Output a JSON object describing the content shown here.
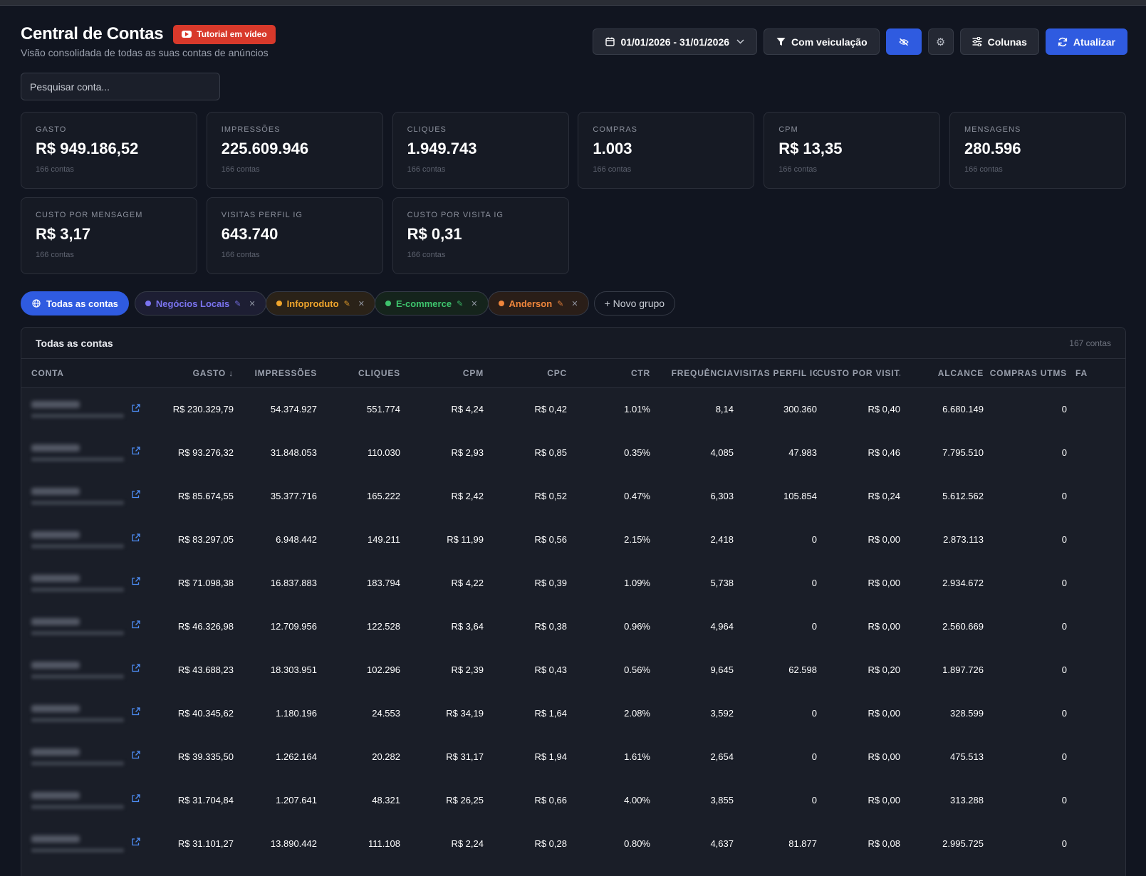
{
  "header": {
    "title": "Central de Contas",
    "tutorial_label": "Tutorial em vídeo",
    "subtitle": "Visão consolidada de todas as suas contas de anúncios"
  },
  "toolbar": {
    "date_range": "01/01/2026 - 31/01/2026",
    "filter_label": "Com veiculação",
    "columns_label": "Colunas",
    "refresh_label": "Atualizar"
  },
  "search": {
    "placeholder": "Pesquisar conta..."
  },
  "cards": [
    {
      "label": "GASTO",
      "value": "R$ 949.186,52",
      "sub": "166 contas"
    },
    {
      "label": "IMPRESSÕES",
      "value": "225.609.946",
      "sub": "166 contas"
    },
    {
      "label": "CLIQUES",
      "value": "1.949.743",
      "sub": "166 contas"
    },
    {
      "label": "COMPRAS",
      "value": "1.003",
      "sub": "166 contas"
    },
    {
      "label": "CPM",
      "value": "R$ 13,35",
      "sub": "166 contas"
    },
    {
      "label": "MENSAGENS",
      "value": "280.596",
      "sub": "166 contas"
    },
    {
      "label": "CUSTO POR MENSAGEM",
      "value": "R$ 3,17",
      "sub": "166 contas"
    },
    {
      "label": "VISITAS PERFIL IG",
      "value": "643.740",
      "sub": "166 contas"
    },
    {
      "label": "CUSTO POR VISITA IG",
      "value": "R$ 0,31",
      "sub": "166 contas"
    }
  ],
  "groups": {
    "all_label": "Todas as contas",
    "items": [
      {
        "label": "Negócios Locais",
        "color": "#7b74f0",
        "bg": "#1d1e33"
      },
      {
        "label": "Infoproduto",
        "color": "#f0a52c",
        "bg": "#2a2218"
      },
      {
        "label": "E-commerce",
        "color": "#3ec46d",
        "bg": "#15241c"
      },
      {
        "label": "Anderson",
        "color": "#f0863c",
        "bg": "#2a1e18"
      }
    ],
    "new_label": "+ Novo grupo",
    "edit_glyph": "✎",
    "close_glyph": "✕"
  },
  "table": {
    "title": "Todas as contas",
    "count": "167 contas",
    "columns": [
      "CONTA",
      "GASTO ↓",
      "IMPRESSÕES",
      "CLIQUES",
      "CPM",
      "CPC",
      "CTR",
      "FREQUÊNCIA",
      "VISITAS PERFIL IG",
      "CUSTO POR VISITA IG",
      "ALCANCE",
      "COMPRAS UTMS",
      "FA"
    ],
    "rows": [
      [
        "",
        "R$ 230.329,79",
        "54.374.927",
        "551.774",
        "R$ 4,24",
        "R$ 0,42",
        "1.01%",
        "8,14",
        "300.360",
        "R$ 0,40",
        "6.680.149",
        "0"
      ],
      [
        "",
        "R$ 93.276,32",
        "31.848.053",
        "110.030",
        "R$ 2,93",
        "R$ 0,85",
        "0.35%",
        "4,085",
        "47.983",
        "R$ 0,46",
        "7.795.510",
        "0"
      ],
      [
        "",
        "R$ 85.674,55",
        "35.377.716",
        "165.222",
        "R$ 2,42",
        "R$ 0,52",
        "0.47%",
        "6,303",
        "105.854",
        "R$ 0,24",
        "5.612.562",
        "0"
      ],
      [
        "",
        "R$ 83.297,05",
        "6.948.442",
        "149.211",
        "R$ 11,99",
        "R$ 0,56",
        "2.15%",
        "2,418",
        "0",
        "R$ 0,00",
        "2.873.113",
        "0"
      ],
      [
        "",
        "R$ 71.098,38",
        "16.837.883",
        "183.794",
        "R$ 4,22",
        "R$ 0,39",
        "1.09%",
        "5,738",
        "0",
        "R$ 0,00",
        "2.934.672",
        "0"
      ],
      [
        "",
        "R$ 46.326,98",
        "12.709.956",
        "122.528",
        "R$ 3,64",
        "R$ 0,38",
        "0.96%",
        "4,964",
        "0",
        "R$ 0,00",
        "2.560.669",
        "0"
      ],
      [
        "",
        "R$ 43.688,23",
        "18.303.951",
        "102.296",
        "R$ 2,39",
        "R$ 0,43",
        "0.56%",
        "9,645",
        "62.598",
        "R$ 0,20",
        "1.897.726",
        "0"
      ],
      [
        "",
        "R$ 40.345,62",
        "1.180.196",
        "24.553",
        "R$ 34,19",
        "R$ 1,64",
        "2.08%",
        "3,592",
        "0",
        "R$ 0,00",
        "328.599",
        "0"
      ],
      [
        "",
        "R$ 39.335,50",
        "1.262.164",
        "20.282",
        "R$ 31,17",
        "R$ 1,94",
        "1.61%",
        "2,654",
        "0",
        "R$ 0,00",
        "475.513",
        "0"
      ],
      [
        "",
        "R$ 31.704,84",
        "1.207.641",
        "48.321",
        "R$ 26,25",
        "R$ 0,66",
        "4.00%",
        "3,855",
        "0",
        "R$ 0,00",
        "313.288",
        "0"
      ],
      [
        "",
        "R$ 31.101,27",
        "13.890.442",
        "111.108",
        "R$ 2,24",
        "R$ 0,28",
        "0.80%",
        "4,637",
        "81.877",
        "R$ 0,08",
        "2.995.725",
        "0"
      ],
      [
        "",
        "",
        "",
        "",
        "",
        "",
        "",
        "",
        "",
        "",
        "",
        ""
      ]
    ]
  }
}
